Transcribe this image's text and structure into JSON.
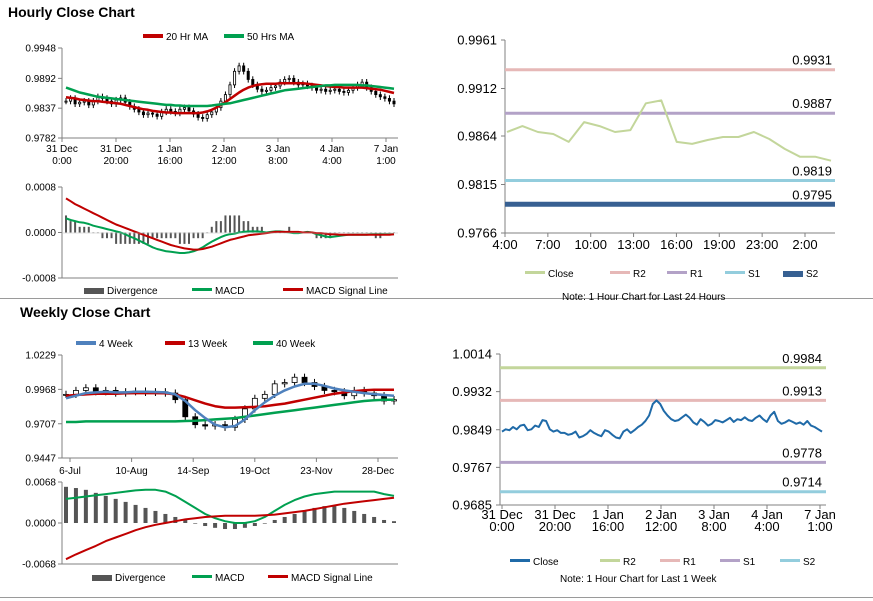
{
  "titles": {
    "hourly": "Hourly Close Chart",
    "weekly": "Weekly Close Chart"
  },
  "colors": {
    "ma20": "#c00000",
    "ma50": "#00a050",
    "candle": "#000000",
    "div": "#555555",
    "macd": "#00a050",
    "signal": "#c00000",
    "close_h": "#c3d69b",
    "close_w": "#1f6aa8",
    "r2": "#e6b8b7",
    "r1": "#b3a2c7",
    "s1": "#93cddd",
    "s2": "#376092",
    "r2_w": "#c3d69b",
    "r1_w": "#e6b8b7",
    "s1_w": "#b3a2c7",
    "s2_w": "#93cddd",
    "wk4": "#4f81bd",
    "wk13": "#c00000",
    "wk40": "#00a050"
  },
  "chart_data": [
    {
      "id": "hourly_candles",
      "type": "candlestick",
      "legend": [
        "20 Hr MA",
        "50 Hrs MA"
      ],
      "yticks": [
        "0.9948",
        "0.9892",
        "0.9837",
        "0.9782"
      ],
      "ylim": [
        0.9782,
        0.9948
      ],
      "xticks": [
        [
          "31 Dec",
          "0:00"
        ],
        [
          "31 Dec",
          "20:00"
        ],
        [
          "1 Jan",
          "16:00"
        ],
        [
          "2 Jan",
          "12:00"
        ],
        [
          "3 Jan",
          "8:00"
        ],
        [
          "4 Jan",
          "4:00"
        ],
        [
          "7 Jan",
          "1:00"
        ]
      ],
      "close": [
        0.985,
        0.9855,
        0.9845,
        0.9848,
        0.985,
        0.9843,
        0.985,
        0.9858,
        0.9855,
        0.985,
        0.9845,
        0.9852,
        0.9856,
        0.9848,
        0.984,
        0.9835,
        0.983,
        0.9825,
        0.9828,
        0.9826,
        0.9822,
        0.983,
        0.9835,
        0.9831,
        0.9828,
        0.9835,
        0.9838,
        0.9832,
        0.9826,
        0.982,
        0.9818,
        0.9825,
        0.983,
        0.9838,
        0.985,
        0.9862,
        0.988,
        0.9905,
        0.9915,
        0.9905,
        0.989,
        0.988,
        0.9872,
        0.9868,
        0.987,
        0.9875,
        0.9878,
        0.9885,
        0.989,
        0.9892,
        0.9885,
        0.988,
        0.9882,
        0.9878,
        0.9875,
        0.987,
        0.9872,
        0.9868,
        0.987,
        0.9872,
        0.9868,
        0.9866,
        0.987,
        0.9875,
        0.988,
        0.9885,
        0.9875,
        0.9868,
        0.9862,
        0.9858,
        0.9855,
        0.985,
        0.9845
      ],
      "ma20": [
        0.9857,
        0.9856,
        0.9855,
        0.9853,
        0.9852,
        0.9851,
        0.985,
        0.985,
        0.9849,
        0.9848,
        0.9847,
        0.9846,
        0.9845,
        0.9843,
        0.9841,
        0.9839,
        0.9837,
        0.9835,
        0.9834,
        0.9832,
        0.9831,
        0.983,
        0.9829,
        0.9829,
        0.9828,
        0.9828,
        0.9828,
        0.9828,
        0.9828,
        0.9828,
        0.9829,
        0.9831,
        0.9834,
        0.9838,
        0.9843,
        0.9848,
        0.9854,
        0.986,
        0.9866,
        0.9871,
        0.9875,
        0.9878,
        0.988,
        0.9881,
        0.9882,
        0.9882,
        0.9882,
        0.9883,
        0.9883,
        0.9883,
        0.9883,
        0.9883,
        0.9883,
        0.9882,
        0.9881,
        0.988,
        0.9879,
        0.9878,
        0.9877,
        0.9876,
        0.9876,
        0.9875,
        0.9875,
        0.9875,
        0.9875,
        0.9875,
        0.9874,
        0.9873,
        0.9872,
        0.9871,
        0.9869,
        0.9867,
        0.9865
      ],
      "ma50": [
        0.9875,
        0.9872,
        0.9869,
        0.9866,
        0.9864,
        0.9862,
        0.986,
        0.9858,
        0.9857,
        0.9856,
        0.9855,
        0.9854,
        0.9853,
        0.9852,
        0.9851,
        0.985,
        0.9849,
        0.9848,
        0.9847,
        0.9846,
        0.9845,
        0.9844,
        0.9843,
        0.9843,
        0.9842,
        0.9842,
        0.9841,
        0.9841,
        0.9841,
        0.9841,
        0.9841,
        0.9841,
        0.9842,
        0.9843,
        0.9844,
        0.9845,
        0.9846,
        0.9848,
        0.985,
        0.9852,
        0.9854,
        0.9856,
        0.9858,
        0.986,
        0.9862,
        0.9864,
        0.9866,
        0.9868,
        0.987,
        0.9871,
        0.9872,
        0.9873,
        0.9874,
        0.9875,
        0.9876,
        0.9877,
        0.9878,
        0.9879,
        0.9879,
        0.988,
        0.988,
        0.988,
        0.988,
        0.988,
        0.988,
        0.9879,
        0.9879,
        0.9878,
        0.9877,
        0.9876,
        0.9875,
        0.9874,
        0.9873
      ]
    },
    {
      "id": "hourly_macd",
      "type": "macd",
      "legend": [
        "Divergence",
        "MACD",
        "MACD Signal Line"
      ],
      "yticks": [
        "0.0008",
        "0.0000",
        "-0.0008"
      ],
      "ylim": [
        -0.0008,
        0.0008
      ],
      "divergence": [
        0.0003,
        0.0002,
        0.0002,
        0.0001,
        0.0001,
        0.0001,
        0.0,
        0.0,
        -0.0001,
        -0.0001,
        -0.0001,
        -0.0002,
        -0.0002,
        -0.0002,
        -0.0002,
        -0.0002,
        -0.0002,
        -0.0002,
        -0.0002,
        -0.0001,
        -0.0001,
        -0.0001,
        -0.0001,
        -0.0001,
        -0.0001,
        -0.0002,
        -0.0002,
        -0.0002,
        -0.0001,
        -0.0001,
        -0.0001,
        0.0,
        0.0001,
        0.0002,
        0.0002,
        0.0003,
        0.0003,
        0.0003,
        0.0003,
        0.0002,
        0.0002,
        0.0001,
        0.0001,
        0.0001,
        0.0,
        0.0,
        0.0,
        0.0,
        0.0,
        0.0001,
        0.0,
        0.0,
        0.0,
        0.0,
        0.0,
        -0.0001,
        -0.0001,
        -0.0001,
        -0.0001,
        0.0,
        0.0,
        0.0,
        0.0,
        0.0,
        0.0,
        0.0,
        0.0,
        0.0,
        -0.0001,
        -0.0001,
        0.0,
        0.0,
        0.0
      ],
      "macd": [
        0.00025,
        0.00022,
        0.0002,
        0.00018,
        0.00017,
        0.00015,
        0.00012,
        0.0001,
        8e-05,
        6e-05,
        4e-05,
        2e-05,
        0.0,
        -3e-05,
        -7e-05,
        -0.0001,
        -0.00014,
        -0.00018,
        -0.00022,
        -0.00026,
        -0.00029,
        -0.00031,
        -0.00033,
        -0.00034,
        -0.00035,
        -0.00036,
        -0.00036,
        -0.00035,
        -0.00033,
        -0.0003,
        -0.00026,
        -0.00021,
        -0.00016,
        -0.00012,
        -8e-05,
        -5e-05,
        -3e-05,
        -2e-05,
        0.0,
        1e-05,
        2e-05,
        2e-05,
        2e-05,
        1e-05,
        0.0,
        1e-05,
        2e-05,
        2e-05,
        1e-05,
        0.0,
        -1e-05,
        -1e-05,
        0.0,
        1e-05,
        0.0,
        -3e-05,
        -5e-05,
        -7e-05,
        -8e-05,
        -7e-05,
        -6e-05,
        -5e-05,
        -4e-05,
        -4e-05,
        -4e-05,
        -4e-05,
        -4e-05,
        -3e-05,
        -3e-05,
        -3e-05,
        -3e-05,
        -3e-05,
        -3e-05
      ],
      "signal": [
        0.0006,
        0.00055,
        0.0005,
        0.00046,
        0.00042,
        0.00038,
        0.00034,
        0.0003,
        0.00026,
        0.00022,
        0.00018,
        0.00014,
        0.00011,
        8e-05,
        5e-05,
        2e-05,
        -1e-05,
        -4e-05,
        -7e-05,
        -0.0001,
        -0.00013,
        -0.00016,
        -0.00019,
        -0.00022,
        -0.00024,
        -0.00026,
        -0.00028,
        -0.00029,
        -0.0003,
        -0.0003,
        -0.00029,
        -0.00027,
        -0.00025,
        -0.00022,
        -0.00019,
        -0.00016,
        -0.00013,
        -0.00011,
        -9e-05,
        -7e-05,
        -5e-05,
        -4e-05,
        -3e-05,
        -2e-05,
        -1e-05,
        0.0,
        1e-05,
        1e-05,
        1e-05,
        1e-05,
        1e-05,
        1e-05,
        0.0,
        0.0,
        0.0,
        -1e-05,
        -1e-05,
        -2e-05,
        -3e-05,
        -3e-05,
        -4e-05,
        -4e-05,
        -4e-05,
        -4e-05,
        -4e-05,
        -4e-05,
        -4e-05,
        -4e-05,
        -4e-05,
        -4e-05,
        -4e-05,
        -4e-05,
        -3e-05
      ]
    },
    {
      "id": "hourly_levels",
      "type": "line",
      "yticks": [
        "0.9961",
        "0.9912",
        "0.9864",
        "0.9815",
        "0.9766"
      ],
      "ylim": [
        0.9766,
        0.9961
      ],
      "xticks": [
        "4:00",
        "7:00",
        "10:00",
        "13:00",
        "16:00",
        "19:00",
        "23:00",
        "2:00"
      ],
      "series": [
        {
          "name": "Close",
          "values": [
            0.9868,
            0.9874,
            0.9868,
            0.9866,
            0.9858,
            0.9878,
            0.9874,
            0.9868,
            0.987,
            0.9897,
            0.99,
            0.9858,
            0.9856,
            0.986,
            0.9863,
            0.9863,
            0.9868,
            0.9861,
            0.9851,
            0.9843,
            0.9843,
            0.9839
          ]
        },
        {
          "name": "R2",
          "level": 0.9931,
          "label": "0.9931"
        },
        {
          "name": "R1",
          "level": 0.9887,
          "label": "0.9887"
        },
        {
          "name": "S1",
          "level": 0.9819,
          "label": "0.9819"
        },
        {
          "name": "S2",
          "level": 0.9795,
          "label": "0.9795"
        }
      ],
      "note": "Note: 1 Hour Chart for Last 24 Hours"
    },
    {
      "id": "weekly_candles",
      "type": "candlestick",
      "legend": [
        "4 Week",
        "13 Week",
        "40 Week"
      ],
      "yticks": [
        "1.0229",
        "0.9968",
        "0.9707",
        "0.9447"
      ],
      "ylim": [
        0.9447,
        1.0229
      ],
      "xticks": [
        "6-Jul",
        "10-Aug",
        "14-Sep",
        "19-Oct",
        "23-Nov",
        "28-Dec"
      ],
      "close": [
        0.993,
        0.996,
        0.998,
        0.995,
        0.996,
        0.994,
        0.995,
        0.9955,
        0.9945,
        0.995,
        0.994,
        0.989,
        0.976,
        0.97,
        0.969,
        0.97,
        0.968,
        0.974,
        0.982,
        0.99,
        0.993,
        1.001,
        1.002,
        1.006,
        1.002,
        0.999,
        0.996,
        0.995,
        0.992,
        0.996,
        0.994,
        0.992,
        0.988,
        0.989
      ],
      "w4": [
        0.99,
        0.992,
        0.994,
        0.9945,
        0.995,
        0.9945,
        0.9945,
        0.995,
        0.995,
        0.9948,
        0.9945,
        0.993,
        0.988,
        0.981,
        0.975,
        0.97,
        0.968,
        0.969,
        0.974,
        0.981,
        0.987,
        0.992,
        0.996,
        0.999,
        1.001,
        1.001,
        0.9995,
        0.9975,
        0.996,
        0.995,
        0.994,
        0.9932,
        0.9925,
        0.992
      ],
      "w13": [
        0.992,
        0.9925,
        0.993,
        0.9935,
        0.9935,
        0.9935,
        0.9938,
        0.994,
        0.994,
        0.994,
        0.9938,
        0.993,
        0.991,
        0.9885,
        0.986,
        0.984,
        0.983,
        0.983,
        0.9832,
        0.9835,
        0.984,
        0.985,
        0.986,
        0.9875,
        0.989,
        0.9905,
        0.992,
        0.9935,
        0.9945,
        0.9955,
        0.9962,
        0.9965,
        0.9965,
        0.9965
      ],
      "w40": [
        0.972,
        0.972,
        0.9725,
        0.9725,
        0.9725,
        0.9725,
        0.9725,
        0.9725,
        0.9725,
        0.9725,
        0.9725,
        0.9725,
        0.9728,
        0.973,
        0.9735,
        0.974,
        0.9745,
        0.975,
        0.976,
        0.977,
        0.978,
        0.979,
        0.98,
        0.981,
        0.982,
        0.983,
        0.984,
        0.985,
        0.986,
        0.987,
        0.988,
        0.9885,
        0.989,
        0.989
      ]
    },
    {
      "id": "weekly_macd",
      "type": "macd",
      "legend": [
        "Divergence",
        "MACD",
        "MACD Signal Line"
      ],
      "yticks": [
        "0.0068",
        "0.0000",
        "-0.0068"
      ],
      "ylim": [
        -0.0068,
        0.0068
      ],
      "divergence": [
        0.006,
        0.0058,
        0.0055,
        0.005,
        0.0045,
        0.004,
        0.0035,
        0.003,
        0.0025,
        0.002,
        0.0015,
        0.001,
        0.0005,
        0.0,
        -0.0005,
        -0.0008,
        -0.001,
        -0.001,
        -0.0008,
        -0.0005,
        0.0,
        0.0005,
        0.001,
        0.0015,
        0.002,
        0.0025,
        0.0028,
        0.0028,
        0.0025,
        0.002,
        0.0015,
        0.001,
        0.0005,
        0.0003
      ],
      "macd": [
        0.004,
        0.0042,
        0.0044,
        0.0046,
        0.0048,
        0.005,
        0.0052,
        0.0054,
        0.0055,
        0.0055,
        0.0052,
        0.0045,
        0.0035,
        0.0025,
        0.0015,
        0.0008,
        0.0003,
        0.0,
        0.0,
        0.0003,
        0.001,
        0.002,
        0.003,
        0.0038,
        0.0044,
        0.0048,
        0.005,
        0.0052,
        0.0052,
        0.0052,
        0.0052,
        0.0052,
        0.0048,
        0.0045
      ],
      "signal": [
        -0.006,
        -0.0052,
        -0.0045,
        -0.0038,
        -0.003,
        -0.0024,
        -0.0018,
        -0.0012,
        -0.0007,
        -0.0003,
        0.0,
        0.0003,
        0.0006,
        0.0008,
        0.001,
        0.0011,
        0.0012,
        0.0012,
        0.0012,
        0.0012,
        0.0013,
        0.0014,
        0.0016,
        0.0018,
        0.002,
        0.0023,
        0.0026,
        0.0029,
        0.0032,
        0.0034,
        0.0036,
        0.0038,
        0.004,
        0.0042
      ]
    },
    {
      "id": "weekly_levels",
      "type": "line",
      "yticks": [
        "1.0014",
        "0.9932",
        "0.9849",
        "0.9767",
        "0.9685"
      ],
      "ylim": [
        0.9685,
        1.0014
      ],
      "xticks": [
        [
          "31 Dec",
          "0:00"
        ],
        [
          "31 Dec",
          "20:00"
        ],
        [
          "1 Jan",
          "16:00"
        ],
        [
          "2 Jan",
          "12:00"
        ],
        [
          "3 Jan",
          "8:00"
        ],
        [
          "4 Jan",
          "4:00"
        ],
        [
          "7 Jan",
          "1:00"
        ]
      ],
      "series": [
        {
          "name": "Close",
          "values": [
            0.9845,
            0.985,
            0.9848,
            0.9855,
            0.985,
            0.9858,
            0.986,
            0.9848,
            0.985,
            0.9858,
            0.9855,
            0.987,
            0.9868,
            0.985,
            0.9845,
            0.9848,
            0.9842,
            0.9842,
            0.9838,
            0.984,
            0.9845,
            0.9832,
            0.9835,
            0.984,
            0.9848,
            0.9842,
            0.9838,
            0.9835,
            0.9848,
            0.9845,
            0.9838,
            0.9832,
            0.983,
            0.9845,
            0.985,
            0.9842,
            0.9848,
            0.9855,
            0.986,
            0.9868,
            0.988,
            0.9905,
            0.9913,
            0.9905,
            0.989,
            0.988,
            0.9872,
            0.9868,
            0.987,
            0.9876,
            0.9882,
            0.9875,
            0.9865,
            0.986,
            0.9872,
            0.9866,
            0.9858,
            0.9862,
            0.987,
            0.9868,
            0.9865,
            0.987,
            0.9875,
            0.9866,
            0.9872,
            0.987,
            0.9876,
            0.987,
            0.9868,
            0.9875,
            0.988,
            0.9872,
            0.9866,
            0.988,
            0.9888,
            0.9868,
            0.9862,
            0.9865,
            0.987,
            0.9866,
            0.9862,
            0.9865,
            0.986,
            0.9868,
            0.9858,
            0.9855,
            0.985,
            0.9845
          ]
        },
        {
          "name": "R2",
          "level": 0.9984,
          "label": "0.9984"
        },
        {
          "name": "R1",
          "level": 0.9913,
          "label": "0.9913"
        },
        {
          "name": "S1",
          "level": 0.9778,
          "label": "0.9778"
        },
        {
          "name": "S2",
          "level": 0.9714,
          "label": "0.9714"
        }
      ],
      "note": "Note: 1 Hour Chart for Last 1 Week"
    }
  ]
}
